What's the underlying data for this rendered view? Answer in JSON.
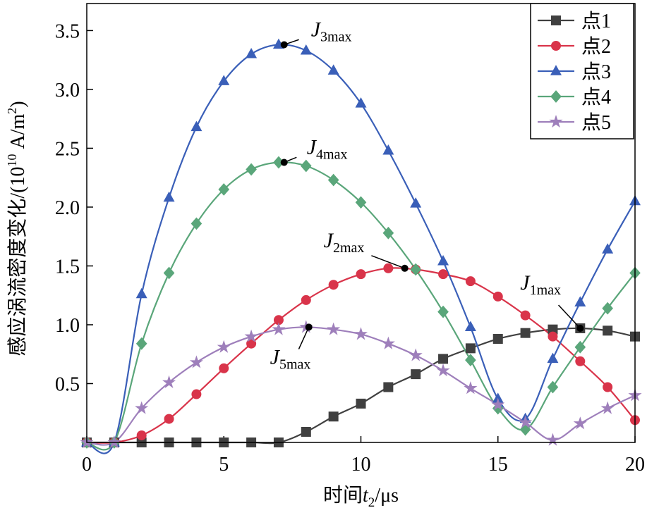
{
  "chart_data": {
    "type": "line",
    "x": [
      0,
      1,
      2,
      3,
      4,
      5,
      6,
      7,
      8,
      9,
      10,
      11,
      12,
      13,
      14,
      15,
      16,
      17,
      18,
      19,
      20
    ],
    "series": [
      {
        "name": "点1",
        "color": "#404040",
        "marker": "square",
        "values": [
          0,
          0,
          0,
          0,
          0,
          0,
          0,
          0,
          0.09,
          0.22,
          0.33,
          0.47,
          0.58,
          0.71,
          0.8,
          0.88,
          0.93,
          0.96,
          0.97,
          0.95,
          0.9
        ]
      },
      {
        "name": "点2",
        "color": "#d9344a",
        "marker": "circle",
        "values": [
          0,
          0,
          0.06,
          0.2,
          0.41,
          0.63,
          0.84,
          1.04,
          1.21,
          1.34,
          1.43,
          1.48,
          1.47,
          1.43,
          1.37,
          1.24,
          1.08,
          0.9,
          0.69,
          0.47,
          0.19
        ]
      },
      {
        "name": "点3",
        "color": "#3a5fb8",
        "marker": "triangle",
        "values": [
          0,
          0,
          1.26,
          2.08,
          2.68,
          3.07,
          3.3,
          3.38,
          3.33,
          3.16,
          2.88,
          2.48,
          2.03,
          1.54,
          0.98,
          0.37,
          0.2,
          0.71,
          1.19,
          1.64,
          2.05
        ]
      },
      {
        "name": "点4",
        "color": "#5aa67a",
        "marker": "diamond",
        "values": [
          0,
          0,
          0.84,
          1.44,
          1.86,
          2.15,
          2.32,
          2.38,
          2.35,
          2.23,
          2.04,
          1.78,
          1.47,
          1.11,
          0.7,
          0.29,
          0.11,
          0.47,
          0.81,
          1.14,
          1.44
        ]
      },
      {
        "name": "点5",
        "color": "#9e7fbb",
        "marker": "star",
        "values": [
          0,
          0,
          0.29,
          0.51,
          0.68,
          0.81,
          0.9,
          0.96,
          0.98,
          0.96,
          0.92,
          0.84,
          0.74,
          0.61,
          0.46,
          0.32,
          0.17,
          0.02,
          0.16,
          0.29,
          0.4
        ]
      }
    ],
    "annotations": [
      {
        "text": "J",
        "sub": "3max",
        "x": 7.2,
        "y": 3.38
      },
      {
        "text": "J",
        "sub": "4max",
        "x": 7.2,
        "y": 2.38
      },
      {
        "text": "J",
        "sub": "2max",
        "x": 11.6,
        "y": 1.48
      },
      {
        "text": "J",
        "sub": "1max",
        "x": 18,
        "y": 0.97
      },
      {
        "text": "J",
        "sub": "5max",
        "x": 8.1,
        "y": 0.98
      }
    ],
    "xlim": [
      0,
      20
    ],
    "xticks": [
      0,
      5,
      10,
      15,
      20
    ],
    "ylim": [
      0,
      3.73
    ],
    "yticks": [
      0.5,
      {
        "value": 1,
        "label": "1.0"
      },
      1.5,
      {
        "value": 2,
        "label": "2.0"
      },
      2.5,
      {
        "value": 3,
        "label": "3.0"
      },
      3.5
    ],
    "x_label": {
      "text": "时间",
      "var": "t",
      "sub": "2",
      "unit": "/μs"
    },
    "y_label": {
      "text": "感应涡流密度变化/(10",
      "exp": "10",
      "unit": " A/m",
      "unit_exp": "2",
      "close": ")"
    },
    "legend": "upper right"
  }
}
